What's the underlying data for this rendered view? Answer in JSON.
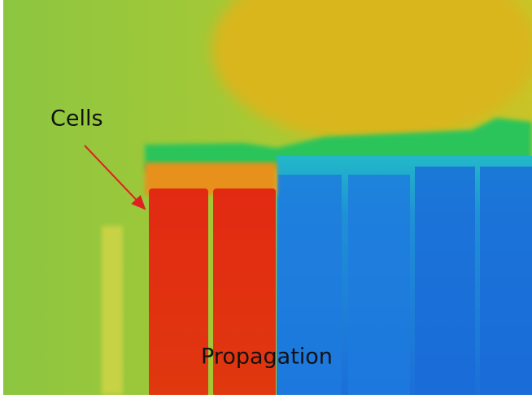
{
  "labels": {
    "cells": "Cells",
    "propagation": "Propagation"
  }
}
